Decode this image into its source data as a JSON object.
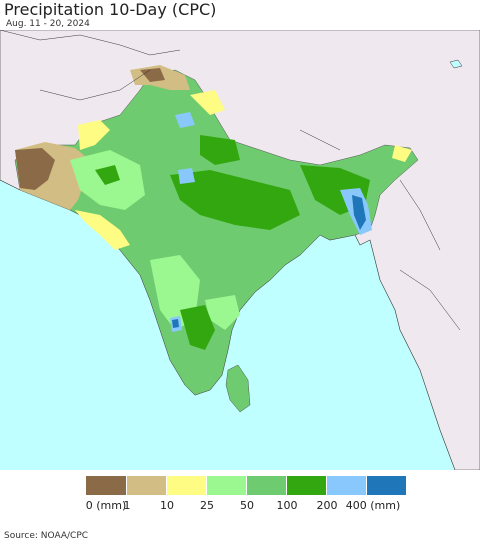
{
  "title": "Precipitation 10-Day (CPC)",
  "subtitle": "Aug. 11 - 20, 2024",
  "legend": {
    "colors": [
      "#8b6b47",
      "#d2bd84",
      "#fefc82",
      "#9bf78f",
      "#6fcb6f",
      "#33a70f",
      "#89c8fc",
      "#1f77b9"
    ],
    "labels": [
      "0 (mm)",
      "1",
      "10",
      "25",
      "50",
      "100",
      "200",
      "400 (mm)"
    ]
  },
  "source": "Source: NOAA/CPC"
}
